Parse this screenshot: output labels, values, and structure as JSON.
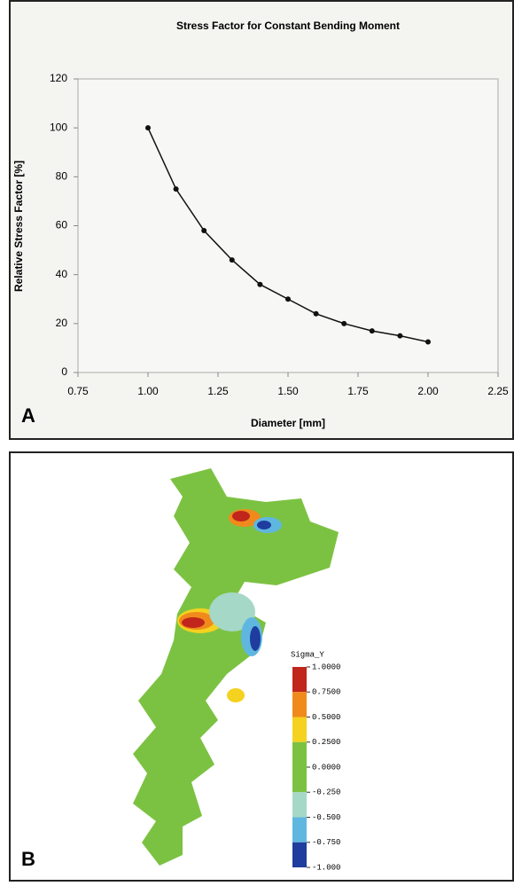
{
  "chart_data": {
    "type": "line",
    "panel_label": "A",
    "title": "Stress Factor for Constant Bending Moment",
    "x_label": "Diameter [mm]",
    "y_label": "Relative Stress Factor [%]",
    "x": [
      1.0,
      1.1,
      1.2,
      1.3,
      1.4,
      1.5,
      1.6,
      1.7,
      1.8,
      1.9,
      2.0
    ],
    "values": [
      100,
      75,
      58,
      46,
      36,
      30,
      24,
      20,
      17,
      15,
      12.5
    ],
    "color": "#111111",
    "xlim": [
      0.75,
      2.25
    ],
    "xticks": [
      0.75,
      {
        "value": 1.0,
        "label": "1.00"
      },
      1.25,
      {
        "value": 1.5,
        "label": "1.50"
      },
      1.75,
      {
        "value": 2.0,
        "label": "2.00"
      },
      2.25
    ],
    "ylim": [
      0,
      120
    ],
    "yticks": [
      0,
      20,
      40,
      60,
      80,
      100,
      120
    ],
    "grid": false
  },
  "panel_b": {
    "panel_label": "B",
    "colorbar": {
      "title": "Sigma_Y",
      "ticks": [
        {
          "value": 1,
          "label": "1.0000"
        },
        {
          "value": 0.75,
          "label": "0.7500"
        },
        {
          "value": 0.5,
          "label": "0.5000"
        },
        {
          "value": 0.25,
          "label": "0.2500"
        },
        {
          "value": 0,
          "label": "0.0000"
        },
        {
          "value": -0.25,
          "label": "-0.250"
        },
        {
          "value": -0.5,
          "label": "-0.500"
        },
        {
          "value": -0.75,
          "label": "-0.750"
        },
        {
          "value": -1,
          "label": "-1.000"
        }
      ],
      "colors": [
        "#c0261b",
        "#f08a1c",
        "#f4d21f",
        "#7cc242",
        "#7cc242",
        "#a6d8c8",
        "#5fb7e0",
        "#1f3d9e"
      ]
    }
  }
}
